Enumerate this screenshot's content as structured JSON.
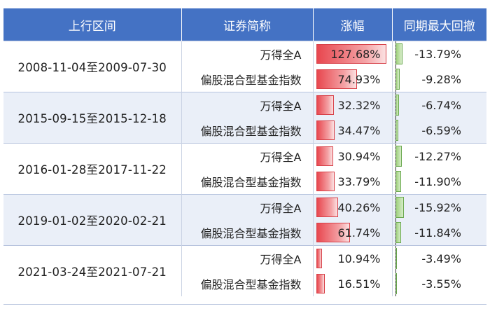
{
  "header": [
    "上行区间",
    "证券简称",
    "涨幅",
    "同期最大回撤"
  ],
  "colors": {
    "header_bg": "#4472c4",
    "bar_up": "#e8474f",
    "bar_drawdown": "#9fd17d",
    "row_shade": "#eaeff8"
  },
  "rows": [
    {
      "period": "2008-11-04至2009-07-30",
      "shaded": false,
      "items": [
        {
          "name": "万得全A",
          "gain": "127.68%",
          "gain_value": 127.68,
          "drawdown": "-13.79%",
          "drawdown_value": -13.79
        },
        {
          "name": "偏股混合型基金指数",
          "gain": "74.93%",
          "gain_value": 74.93,
          "drawdown": "-9.28%",
          "drawdown_value": -9.28
        }
      ]
    },
    {
      "period": "2015-09-15至2015-12-18",
      "shaded": true,
      "items": [
        {
          "name": "万得全A",
          "gain": "32.32%",
          "gain_value": 32.32,
          "drawdown": "-6.74%",
          "drawdown_value": -6.74
        },
        {
          "name": "偏股混合型基金指数",
          "gain": "34.47%",
          "gain_value": 34.47,
          "drawdown": "-6.59%",
          "drawdown_value": -6.59
        }
      ]
    },
    {
      "period": "2016-01-28至2017-11-22",
      "shaded": false,
      "items": [
        {
          "name": "万得全A",
          "gain": "30.94%",
          "gain_value": 30.94,
          "drawdown": "-12.27%",
          "drawdown_value": -12.27
        },
        {
          "name": "偏股混合型基金指数",
          "gain": "33.79%",
          "gain_value": 33.79,
          "drawdown": "-11.90%",
          "drawdown_value": -11.9
        }
      ]
    },
    {
      "period": "2019-01-02至2020-02-21",
      "shaded": true,
      "items": [
        {
          "name": "万得全A",
          "gain": "40.26%",
          "gain_value": 40.26,
          "drawdown": "-15.92%",
          "drawdown_value": -15.92
        },
        {
          "name": "偏股混合型基金指数",
          "gain": "61.74%",
          "gain_value": 61.74,
          "drawdown": "-11.84%",
          "drawdown_value": -11.84
        }
      ]
    },
    {
      "period": "2021-03-24至2021-07-21",
      "shaded": false,
      "items": [
        {
          "name": "万得全A",
          "gain": "10.94%",
          "gain_value": 10.94,
          "drawdown": "-3.49%",
          "drawdown_value": -3.49
        },
        {
          "name": "偏股混合型基金指数",
          "gain": "16.51%",
          "gain_value": 16.51,
          "drawdown": "-3.55%",
          "drawdown_value": -3.55
        }
      ]
    }
  ]
}
